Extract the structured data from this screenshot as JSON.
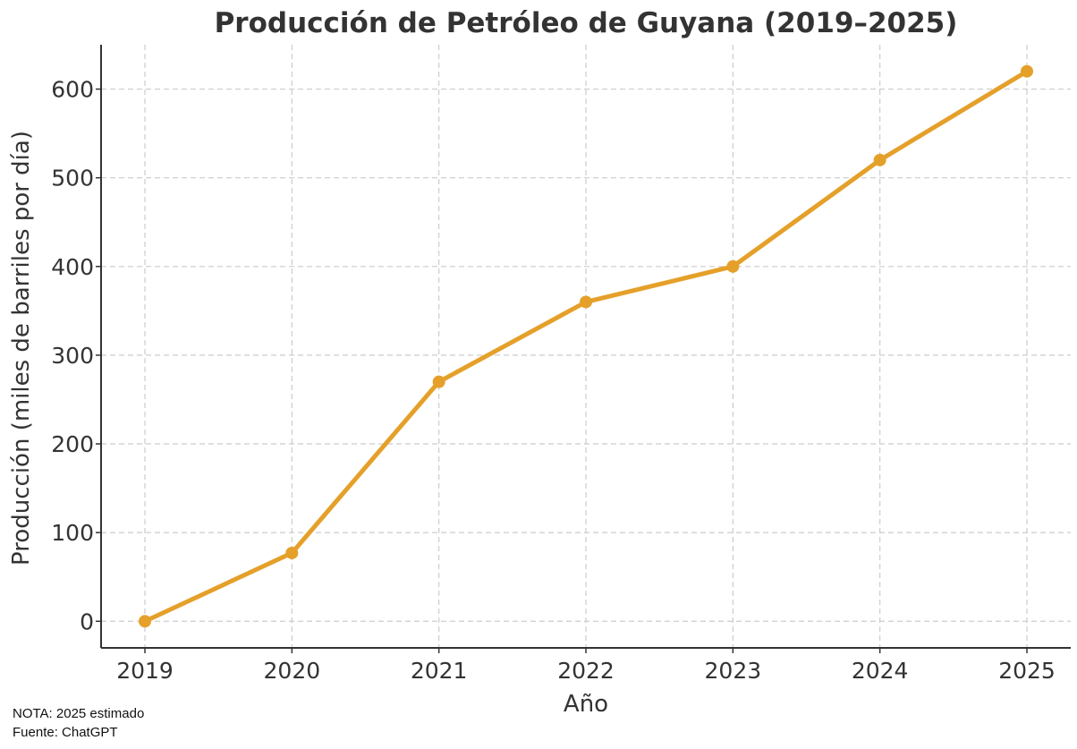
{
  "chart_data": {
    "type": "line",
    "title": "Producción de Petróleo de Guyana (2019–2025)",
    "xlabel": "Año",
    "ylabel": "Producción (miles de barriles por día)",
    "categories": [
      "2019",
      "2020",
      "2021",
      "2022",
      "2023",
      "2024",
      "2025"
    ],
    "series": [
      {
        "values": [
          0,
          77,
          270,
          360,
          400,
          520,
          620
        ]
      }
    ],
    "ylim": [
      -30,
      650
    ],
    "yticks": [
      0,
      100,
      200,
      300,
      400,
      500,
      600
    ],
    "grid": true,
    "color": "#E5A02A"
  },
  "notes": {
    "nota": "NOTA: 2025 estimado",
    "fuente": "Fuente: ChatGPT"
  }
}
